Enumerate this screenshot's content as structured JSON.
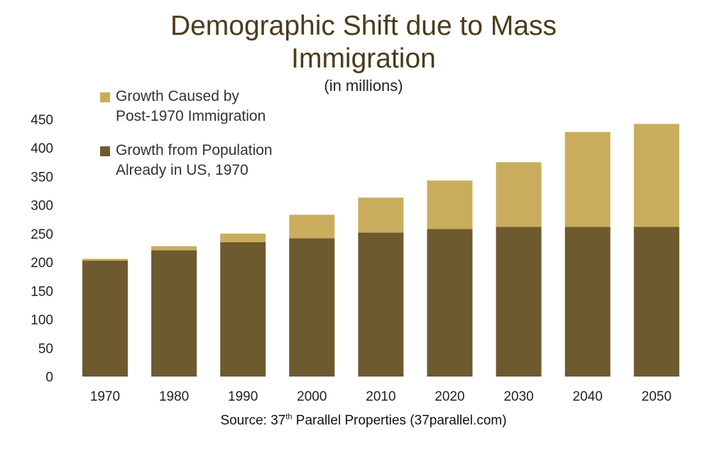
{
  "colors": {
    "immigration": "#c9ad5c",
    "existing": "#6d5a2f",
    "title": "#4a3c1c"
  },
  "chart_data": {
    "type": "bar",
    "stacked": true,
    "title_line1": "Demographic Shift due to Mass",
    "title_line2": "Immigration",
    "subtitle": "(in millions)",
    "categories": [
      "1970",
      "1980",
      "1990",
      "2000",
      "2010",
      "2020",
      "2030",
      "2040",
      "2050"
    ],
    "series": [
      {
        "name": "Growth from Population Already in US, 1970",
        "values": [
          203,
          221,
          235,
          242,
          252,
          258,
          262,
          262,
          262
        ]
      },
      {
        "name": "Growth Caused by Post-1970 Immigration",
        "values": [
          3,
          7,
          15,
          41,
          61,
          85,
          113,
          166,
          180
        ]
      }
    ],
    "legend": [
      {
        "line1": "Growth Caused by",
        "line2": "Post-1970 Immigration",
        "series_index": 1
      },
      {
        "line1": "Growth from Population",
        "line2": "Already in US, 1970",
        "series_index": 0
      }
    ],
    "ylim": [
      0,
      450
    ],
    "yticks": [
      "0",
      "50",
      "100",
      "150",
      "200",
      "250",
      "300",
      "350",
      "400",
      "450"
    ],
    "xlabel": "",
    "ylabel": "",
    "grid": false,
    "legend_position": "top-left"
  },
  "source": {
    "prefix": "Source: 37",
    "sup": "th",
    "suffix": " Parallel Properties (37parallel.com)"
  }
}
